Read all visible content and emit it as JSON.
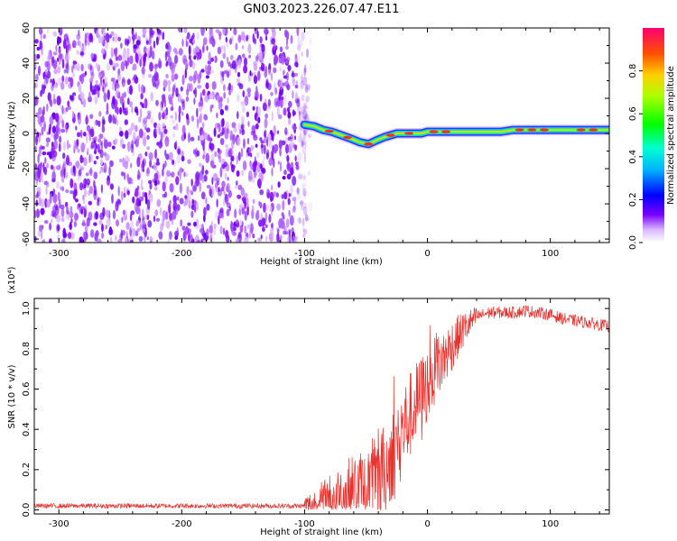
{
  "figure": {
    "title": "GN03.2023.226.07.47.E11"
  },
  "chart_data": [
    {
      "type": "heatmap",
      "title": "",
      "xlabel": "Height of straight line (km)",
      "ylabel": "Frequency (Hz)",
      "xlim": [
        -320,
        148
      ],
      "ylim": [
        -62,
        60
      ],
      "xticks": [
        -300,
        -200,
        -100,
        0,
        100
      ],
      "yticks": [
        -60,
        -40,
        -20,
        0,
        20,
        40,
        60
      ],
      "noise_region": {
        "x": [
          -320,
          -95
        ],
        "y": [
          -62,
          60
        ]
      },
      "signal_ridge": {
        "x": [
          -100,
          -92,
          -85,
          -78,
          -70,
          -62,
          -55,
          -48,
          -42,
          -35,
          -25,
          -15,
          -5,
          0,
          10,
          20,
          30,
          40,
          50,
          60,
          70,
          80,
          90,
          100,
          110,
          120,
          130,
          140,
          148
        ],
        "y": [
          5,
          4,
          2,
          1,
          -1,
          -3,
          -5,
          -6,
          -4,
          -2,
          0,
          0,
          0,
          1,
          1,
          1,
          1,
          1,
          1,
          1,
          2,
          2,
          2,
          2,
          2,
          2,
          2,
          2,
          2
        ]
      },
      "colorbar": {
        "label": "Normalized spectral amplitude",
        "range": [
          0,
          1
        ],
        "ticks": [
          "0.0",
          "0.2",
          "0.4",
          "0.6",
          "0.8"
        ],
        "tick_values": [
          0,
          0.2,
          0.4,
          0.6,
          0.8
        ]
      },
      "grid": false
    },
    {
      "type": "line",
      "title": "",
      "xlabel": "Height of straight line (km)",
      "ylabel": "SNR (10 * v/v)",
      "yexponent": "(x10⁴)",
      "xlim": [
        -320,
        148
      ],
      "ylim": [
        -0.02,
        1.05
      ],
      "xticks": [
        -300,
        -200,
        -100,
        0,
        100
      ],
      "yticks": [
        0.0,
        0.2,
        0.4,
        0.6,
        0.8,
        1.0
      ],
      "color": "#e8322e",
      "envelope": {
        "x": [
          -320,
          -100,
          -90,
          -80,
          -70,
          -60,
          -50,
          -45,
          -40,
          -35,
          -30,
          -25,
          -20,
          -10,
          0,
          10,
          20,
          30,
          40,
          50,
          60,
          70,
          80,
          90,
          100,
          110,
          120,
          130,
          140,
          148
        ],
        "y": [
          0.02,
          0.02,
          0.03,
          0.05,
          0.07,
          0.09,
          0.1,
          0.12,
          0.15,
          0.2,
          0.26,
          0.32,
          0.4,
          0.52,
          0.62,
          0.72,
          0.82,
          0.9,
          0.96,
          0.98,
          0.98,
          0.98,
          0.99,
          0.98,
          0.97,
          0.95,
          0.94,
          0.93,
          0.92,
          0.91
        ]
      },
      "grid": false
    }
  ]
}
